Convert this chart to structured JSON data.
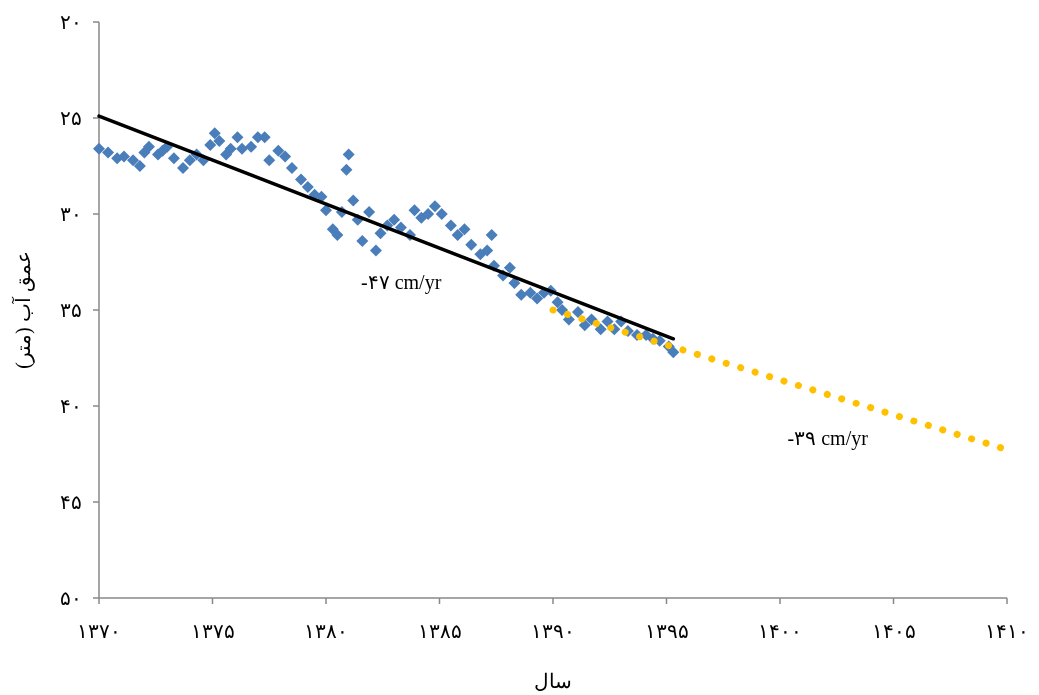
{
  "chart_data": {
    "type": "scatter",
    "xlabel": "سال",
    "ylabel": "عمق آب (متر)",
    "xlim": [
      1370,
      1410
    ],
    "ylim": [
      50,
      20
    ],
    "xticks": [
      {
        "value": 1370,
        "label": "۱۳۷۰"
      },
      {
        "value": 1375,
        "label": "۱۳۷۵"
      },
      {
        "value": 1380,
        "label": "۱۳۸۰"
      },
      {
        "value": 1385,
        "label": "۱۳۸۵"
      },
      {
        "value": 1390,
        "label": "۱۳۹۰"
      },
      {
        "value": 1395,
        "label": "۱۳۹۵"
      },
      {
        "value": 1400,
        "label": "۱۴۰۰"
      },
      {
        "value": 1405,
        "label": "۱۴۰۵"
      },
      {
        "value": 1410,
        "label": "۱۴۱۰"
      }
    ],
    "yticks": [
      {
        "value": 20,
        "label": "۲۰"
      },
      {
        "value": 25,
        "label": "۲۵"
      },
      {
        "value": 30,
        "label": "۳۰"
      },
      {
        "value": 35,
        "label": "۳۵"
      },
      {
        "value": 40,
        "label": "۴۰"
      },
      {
        "value": 45,
        "label": "۴۵"
      },
      {
        "value": 50,
        "label": "۵۰"
      }
    ],
    "grid": false,
    "series": [
      {
        "marker": "diamond",
        "color": "#4a7ebb",
        "x": [
          1370.0,
          1370.4,
          1370.8,
          1371.1,
          1371.5,
          1371.8,
          1372.0,
          1372.2,
          1372.6,
          1372.8,
          1373.0,
          1373.3,
          1373.7,
          1374.0,
          1374.3,
          1374.6,
          1374.9,
          1375.1,
          1375.3,
          1375.6,
          1375.8,
          1376.1,
          1376.3,
          1376.7,
          1377.0,
          1377.3,
          1377.5,
          1377.9,
          1378.2,
          1378.5,
          1378.9,
          1379.2,
          1379.5,
          1379.8,
          1380.0,
          1380.3,
          1380.5,
          1380.7,
          1380.9,
          1381.0,
          1381.2,
          1381.4,
          1381.6,
          1381.9,
          1382.2,
          1382.4,
          1382.7,
          1383.0,
          1383.3,
          1383.7,
          1383.9,
          1384.2,
          1384.5,
          1384.8,
          1385.1,
          1385.5,
          1385.8,
          1386.1,
          1386.4,
          1386.8,
          1387.1,
          1387.3,
          1387.4,
          1387.8,
          1388.1,
          1388.3,
          1388.6,
          1389.0,
          1389.3,
          1389.6,
          1389.9,
          1390.2,
          1390.4,
          1390.7,
          1391.1,
          1391.4,
          1391.7,
          1392.1,
          1392.4,
          1392.7,
          1393.0,
          1393.3,
          1393.7,
          1394.1,
          1394.4,
          1394.7,
          1395.1,
          1395.3
        ],
        "values": [
          26.6,
          26.8,
          27.1,
          27.0,
          27.2,
          27.5,
          26.8,
          26.5,
          26.9,
          26.7,
          26.5,
          27.1,
          27.6,
          27.2,
          26.9,
          27.2,
          26.4,
          25.8,
          26.2,
          26.9,
          26.6,
          26.0,
          26.6,
          26.5,
          26.0,
          26.0,
          27.2,
          26.7,
          27.0,
          27.6,
          28.2,
          28.6,
          29.0,
          29.1,
          29.8,
          30.8,
          31.1,
          29.9,
          27.7,
          26.9,
          29.3,
          30.3,
          31.4,
          29.9,
          31.9,
          31.0,
          30.6,
          30.3,
          30.7,
          31.1,
          29.8,
          30.2,
          30.0,
          29.6,
          30.0,
          30.6,
          31.1,
          30.8,
          31.6,
          32.1,
          31.9,
          31.1,
          32.7,
          33.2,
          32.8,
          33.6,
          34.2,
          34.1,
          34.4,
          34.1,
          34.0,
          34.6,
          35.0,
          35.5,
          35.1,
          35.8,
          35.5,
          36.0,
          35.6,
          36.0,
          35.6,
          36.1,
          36.3,
          36.3,
          36.5,
          36.6,
          36.9,
          37.2
        ]
      },
      {
        "type": "line",
        "line_style": "solid",
        "color": "#000000",
        "x": [
          1370.0,
          1395.3
        ],
        "values": [
          24.9,
          36.5
        ]
      },
      {
        "type": "line",
        "line_style": "dotted",
        "color": "#ffc000",
        "x": [
          1390.0,
          1409.8
        ],
        "values": [
          35.0,
          42.2
        ]
      }
    ],
    "annotations": [
      "-۴۷ cm/yr",
      "-۳۹ cm/yr"
    ]
  }
}
